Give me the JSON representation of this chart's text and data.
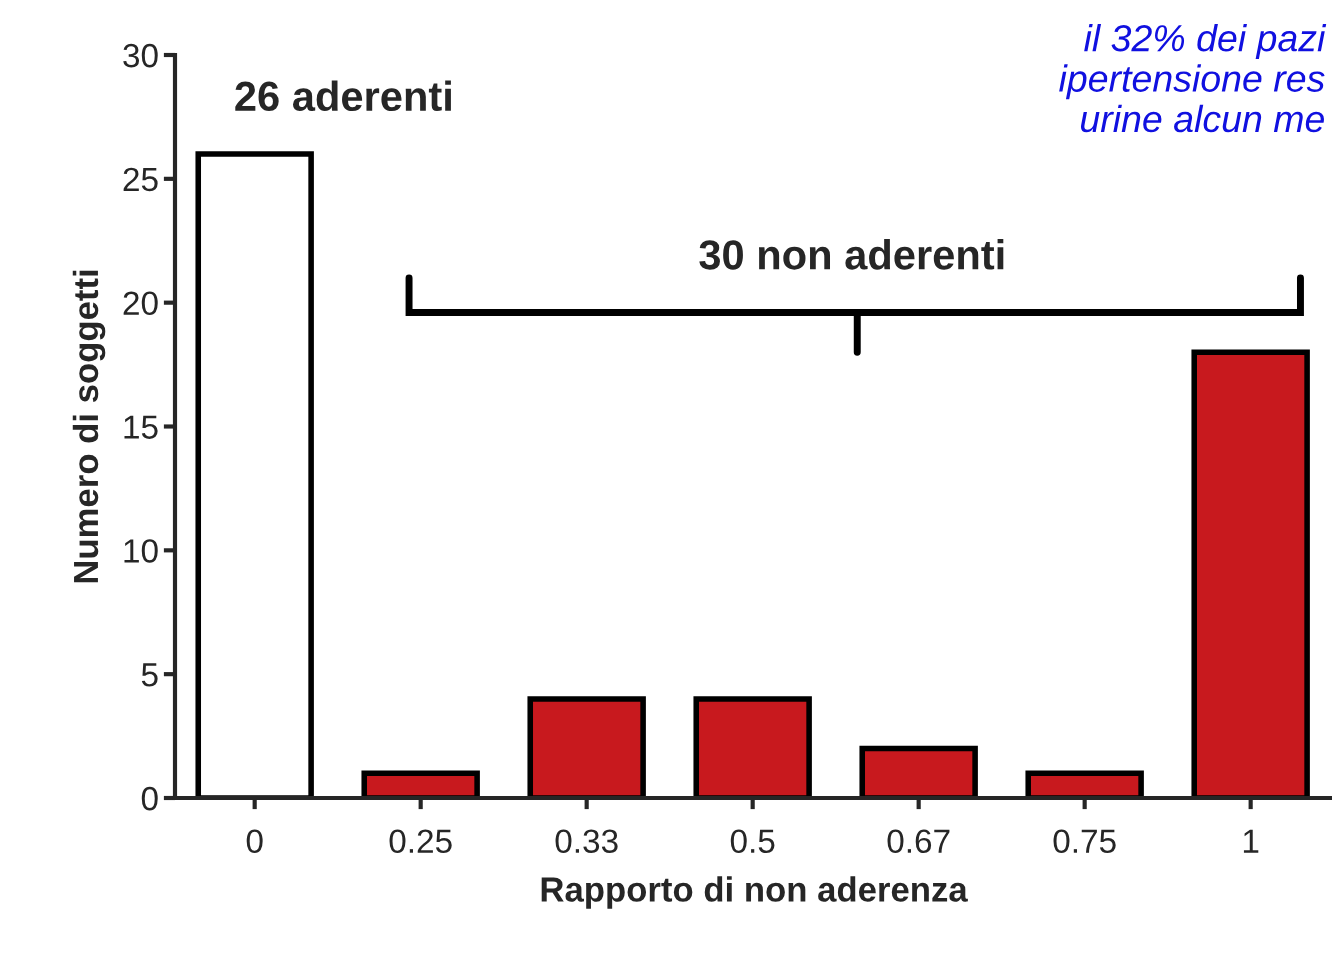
{
  "chart_data": {
    "type": "bar",
    "xlabel": "Rapporto di non aderenza",
    "ylabel": "Numero di soggetti",
    "categories": [
      "0",
      "0.25",
      "0.33",
      "0.5",
      "0.67",
      "0.75",
      "1"
    ],
    "values": [
      26,
      1,
      4,
      4,
      2,
      1,
      18
    ],
    "colors": [
      "#ffffff",
      "#c8191e",
      "#c8191e",
      "#c8191e",
      "#c8191e",
      "#c8191e",
      "#c8191e"
    ],
    "ylim": [
      0,
      30
    ],
    "yticks": [
      0,
      5,
      10,
      15,
      20,
      25,
      30
    ],
    "grid": false,
    "annotations": [
      {
        "text": "26 aderenti",
        "x": "0",
        "y": 26
      },
      "30 non aderenti",
      "il 32% dei pazi\nipertensione res\nurine alcun me"
    ]
  }
}
